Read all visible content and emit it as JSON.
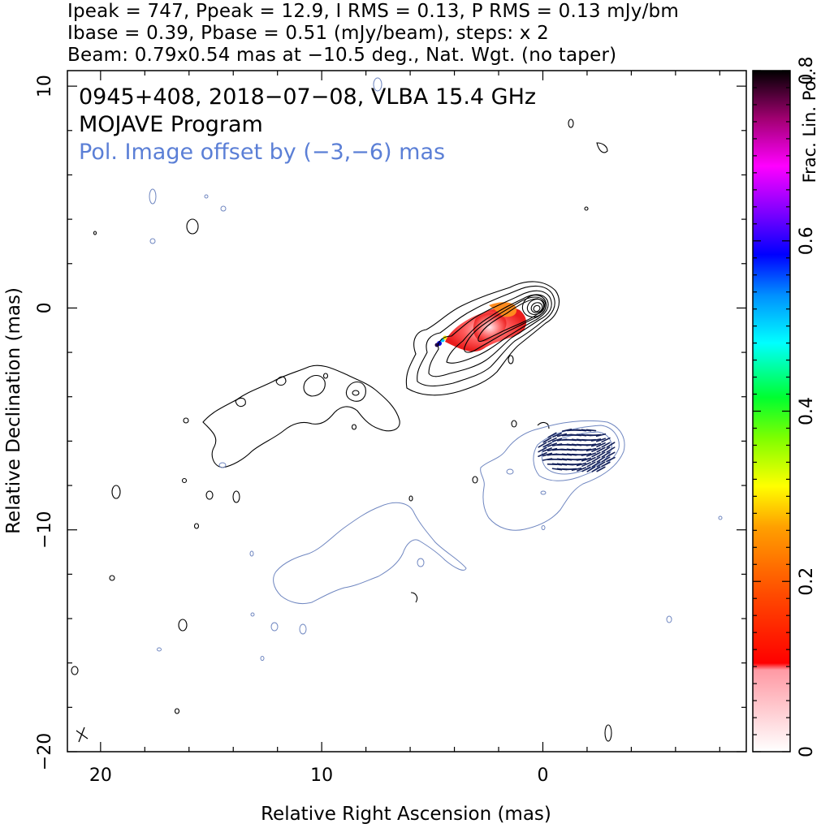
{
  "header": {
    "line1": "Ipeak = 747, Ppeak = 12.9, I RMS = 0.13, P RMS = 0.13 mJy/bm",
    "line2": "Ibase = 0.39, Pbase = 0.51 (mJy/beam), steps: x 2",
    "line3": "Beam: 0.79x0.54 mas at −10.5 deg., Nat. Wgt. (no taper)"
  },
  "annotations": {
    "source": "0945+408, 2018−07−08, VLBA 15.4 GHz",
    "program": "MOJAVE Program",
    "offset_note": "Pol. Image offset by (−3,−6) mas"
  },
  "colors": {
    "total_intensity_contours": "#000000",
    "polarized_contours": "#6f86c0",
    "evpa_ticks": "#14215a",
    "offset_note": "#5b7fd6"
  },
  "chart_data": {
    "type": "contour",
    "xlabel": "Relative Right Ascension (mas)",
    "ylabel": "Relative Declination (mas)",
    "xlim": [
      21.5,
      -9.2
    ],
    "ylim": [
      -20.0,
      10.7
    ],
    "x_reversed": true,
    "x_ticks": [
      20,
      10,
      0
    ],
    "y_ticks": [
      10,
      0,
      -10,
      -20
    ],
    "x_tick_labels": [
      "20",
      "10",
      "0"
    ],
    "y_tick_labels": [
      "10",
      "0",
      "−10",
      "−20"
    ],
    "colorbar": {
      "label": "Frac. Lin. Pol.",
      "range": [
        0,
        0.8
      ],
      "ticks": [
        0,
        0.2,
        0.4,
        0.6,
        0.8
      ],
      "tick_labels": [
        "0",
        "0.2",
        "0.4",
        "0.6",
        "0.8"
      ]
    },
    "core_position": [
      0.0,
      0.0
    ],
    "peak_intensity_mJy_per_beam": 747,
    "peak_polarized_mJy_per_beam": 12.9,
    "intensity_rms": 0.13,
    "polarization_rms": 0.13,
    "intensity_base": 0.39,
    "polarization_base": 0.51,
    "contour_step_factor": 2,
    "beam": {
      "major_mas": 0.79,
      "minor_mas": 0.54,
      "pa_deg": -10.5
    },
    "pol_image_offset_mas": [
      -3,
      -6
    ],
    "features": [
      {
        "name": "core",
        "x": 0.0,
        "y": 0.0
      },
      {
        "name": "inner jet",
        "x": 2.5,
        "y": -1.5
      },
      {
        "name": "extended emission",
        "x": 9.5,
        "y": -4.8
      }
    ]
  }
}
